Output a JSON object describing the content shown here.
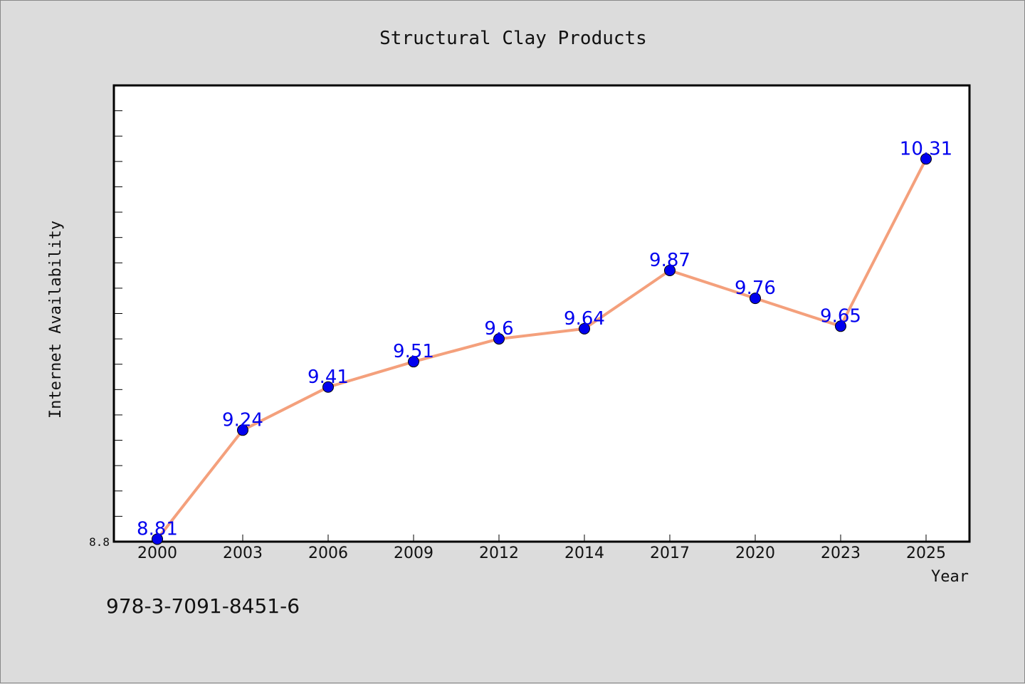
{
  "footer_note": "978-3-7091-8451-6",
  "chart_data": {
    "type": "line",
    "title": "Structural Clay Products",
    "xlabel": "Year",
    "ylabel": "Internet Availability",
    "categories": [
      "2000",
      "2003",
      "2006",
      "2009",
      "2012",
      "2014",
      "2017",
      "2020",
      "2023",
      "2025"
    ],
    "series": [
      {
        "values": [
          8.81,
          9.24,
          9.41,
          9.51,
          9.6,
          9.64,
          9.87,
          9.76,
          9.65,
          10.31
        ]
      }
    ],
    "data_labels": [
      "8.81",
      "9.24",
      "9.41",
      "9.51",
      "9.6",
      "9.64",
      "9.87",
      "9.76",
      "9.65",
      "10.31"
    ],
    "ylim": [
      8.8,
      10.6
    ],
    "ytick_labels": [
      "8.8"
    ],
    "grid": false,
    "line_color": "#f4a07c",
    "marker_color": "#0000ee",
    "label_color": "#0000ee"
  }
}
